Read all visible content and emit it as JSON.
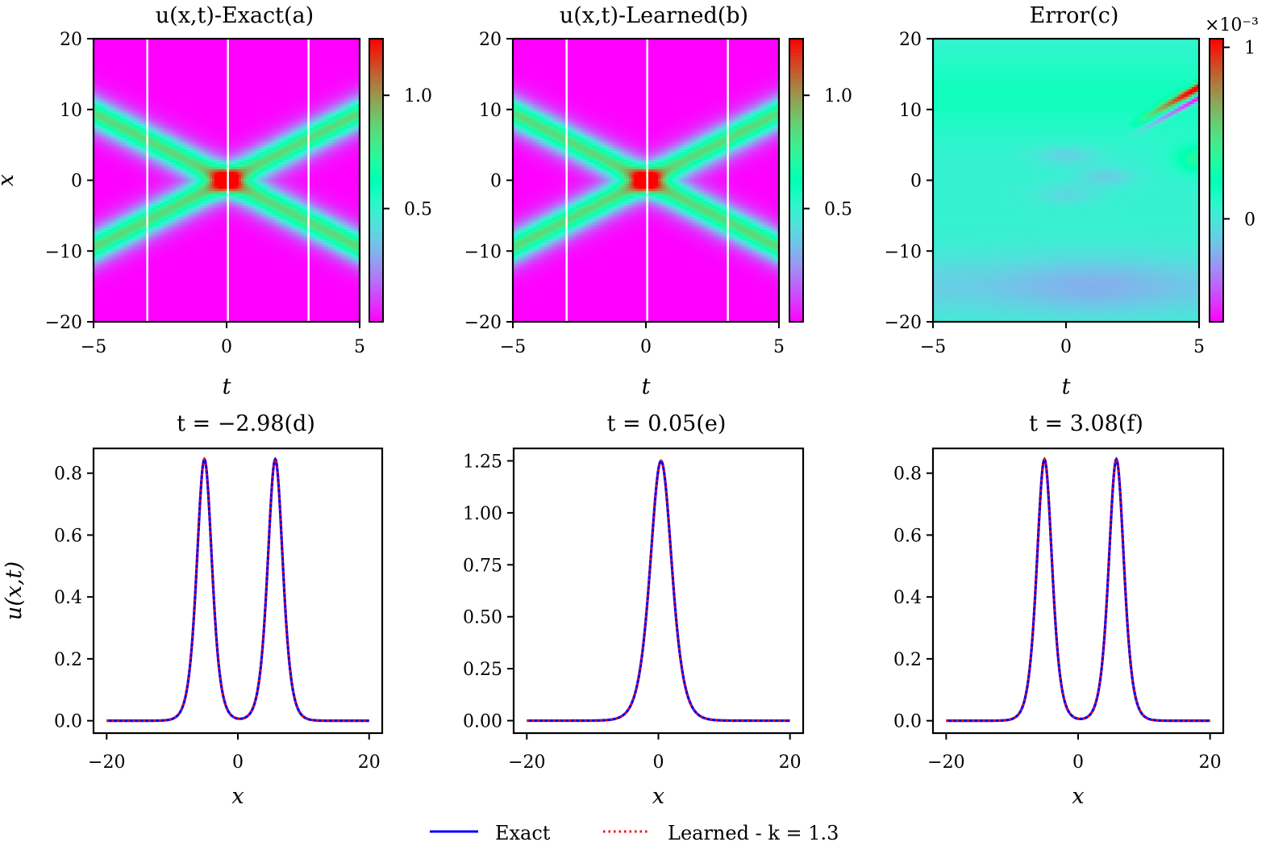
{
  "chart_data": [
    {
      "id": "a",
      "type": "heatmap",
      "title": "u(x,t)-Exact(a)",
      "xlabel": "t",
      "ylabel": "x",
      "xlim": [
        -5,
        5
      ],
      "ylim": [
        -20,
        20
      ],
      "xticks": [
        -5,
        0,
        5
      ],
      "xtick_labels": [
        "−5",
        "0",
        "5"
      ],
      "yticks": [
        -20,
        -10,
        0,
        10,
        20
      ],
      "ytick_labels": [
        "−20",
        "−10",
        "0",
        "10",
        "20"
      ],
      "field": "two-soliton collision, crossing at (t=0, x=0)",
      "soliton_speed": 1.9,
      "peak_value": 1.25,
      "slice_lines_t": [
        -2.98,
        0.05,
        3.08
      ],
      "colormap": "rainbow",
      "colorbar": {
        "range": [
          0.0,
          1.25
        ],
        "ticks": [
          0.5,
          1.0
        ],
        "tick_labels": [
          "0.5",
          "1.0"
        ],
        "offset_label": ""
      }
    },
    {
      "id": "b",
      "type": "heatmap",
      "title": "u(x,t)-Learned(b)",
      "xlabel": "t",
      "ylabel": "",
      "xlim": [
        -5,
        5
      ],
      "ylim": [
        -20,
        20
      ],
      "xticks": [
        -5,
        0,
        5
      ],
      "xtick_labels": [
        "−5",
        "0",
        "5"
      ],
      "yticks": [
        -20,
        -10,
        0,
        10,
        20
      ],
      "ytick_labels": [
        "−20",
        "−10",
        "0",
        "10",
        "20"
      ],
      "field": "two-soliton collision, crossing at (t=0, x=0)",
      "soliton_speed": 1.9,
      "peak_value": 1.25,
      "slice_lines_t": [
        -2.98,
        0.05,
        3.08
      ],
      "colormap": "rainbow",
      "colorbar": {
        "range": [
          0.0,
          1.25
        ],
        "ticks": [
          0.5,
          1.0
        ],
        "tick_labels": [
          "0.5",
          "1.0"
        ],
        "offset_label": ""
      }
    },
    {
      "id": "c",
      "type": "heatmap",
      "title": "Error(c)",
      "xlabel": "t",
      "ylabel": "",
      "xlim": [
        -5,
        5
      ],
      "ylim": [
        -20,
        20
      ],
      "xticks": [
        -5,
        0,
        5
      ],
      "xtick_labels": [
        "−5",
        "0",
        "5"
      ],
      "yticks": [
        -20,
        -10,
        0,
        10,
        20
      ],
      "ytick_labels": [
        "−20",
        "−10",
        "0",
        "10",
        "20"
      ],
      "field": "pointwise error, max near (t=5, x=10)",
      "colormap": "rainbow",
      "colorbar": {
        "range": [
          -0.6,
          1.05
        ],
        "ticks": [
          0,
          1
        ],
        "tick_labels": [
          "0",
          "1"
        ],
        "offset_label": "×10⁻³"
      }
    },
    {
      "id": "d",
      "type": "line",
      "title": "t = −2.98(d)",
      "xlabel": "x",
      "ylabel": "u(x,t)",
      "xlim": [
        -22,
        22
      ],
      "ylim": [
        -0.04,
        0.88
      ],
      "xticks": [
        -20,
        0,
        20
      ],
      "xtick_labels": [
        "−20",
        "0",
        "20"
      ],
      "yticks": [
        0.0,
        0.2,
        0.4,
        0.6,
        0.8
      ],
      "ytick_labels": [
        "0.0",
        "0.2",
        "0.4",
        "0.6",
        "0.8"
      ],
      "t": -2.98,
      "peaks": [
        {
          "x": -5.1,
          "u": 0.845
        },
        {
          "x": 5.7,
          "u": 0.845
        }
      ],
      "series": [
        {
          "name": "Exact",
          "style": "solid",
          "color": "#0000ff"
        },
        {
          "name": "Learned - k = 1.3",
          "style": "dotted",
          "color": "#ff0000"
        }
      ]
    },
    {
      "id": "e",
      "type": "line",
      "title": "t = 0.05(e)",
      "xlabel": "x",
      "ylabel": "",
      "xlim": [
        -22,
        22
      ],
      "ylim": [
        -0.06,
        1.31
      ],
      "xticks": [
        -20,
        0,
        20
      ],
      "xtick_labels": [
        "−20",
        "0",
        "20"
      ],
      "yticks": [
        0.0,
        0.25,
        0.5,
        0.75,
        1.0,
        1.25
      ],
      "ytick_labels": [
        "0.00",
        "0.25",
        "0.50",
        "0.75",
        "1.00",
        "1.25"
      ],
      "t": 0.05,
      "peaks": [
        {
          "x": 0.4,
          "u": 1.25
        }
      ],
      "series": [
        {
          "name": "Exact",
          "style": "solid",
          "color": "#0000ff"
        },
        {
          "name": "Learned - k = 1.3",
          "style": "dotted",
          "color": "#ff0000"
        }
      ]
    },
    {
      "id": "f",
      "type": "line",
      "title": "t = 3.08(f)",
      "xlabel": "x",
      "ylabel": "",
      "xlim": [
        -22,
        22
      ],
      "ylim": [
        -0.04,
        0.88
      ],
      "xticks": [
        -20,
        0,
        20
      ],
      "xtick_labels": [
        "−20",
        "0",
        "20"
      ],
      "yticks": [
        0.0,
        0.2,
        0.4,
        0.6,
        0.8
      ],
      "ytick_labels": [
        "0.0",
        "0.2",
        "0.4",
        "0.6",
        "0.8"
      ],
      "t": 3.08,
      "peaks": [
        {
          "x": -5.1,
          "u": 0.845
        },
        {
          "x": 5.8,
          "u": 0.845
        }
      ],
      "series": [
        {
          "name": "Exact",
          "style": "solid",
          "color": "#0000ff"
        },
        {
          "name": "Learned - k = 1.3",
          "style": "dotted",
          "color": "#ff0000"
        }
      ]
    }
  ],
  "legend": {
    "placement": "bottom-center",
    "entries": [
      {
        "label": "Exact",
        "style": "solid",
        "color": "#0000ff"
      },
      {
        "label": "Learned - k = 1.3",
        "style": "dotted",
        "color": "#ff0000"
      }
    ]
  }
}
